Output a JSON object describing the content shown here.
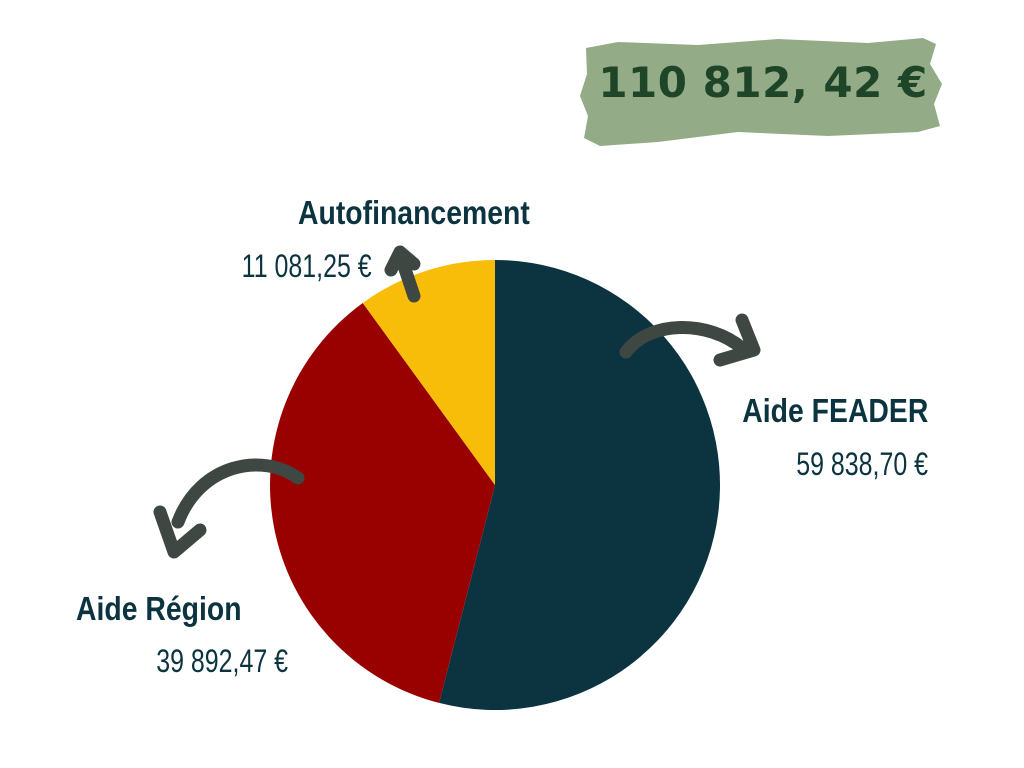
{
  "total": "110 812, 42 €",
  "colors": {
    "banner": "#93ac87",
    "total_text": "#1f4528",
    "arrow": "#3f4743",
    "label_text": "#0c3440"
  },
  "chart_data": {
    "type": "pie",
    "start_angle_deg": 0,
    "slices": [
      {
        "name": "Aide FEADER",
        "value": 59838.7,
        "value_label": "59 838,70 €",
        "color": "#0c3440"
      },
      {
        "name": "Aide Région",
        "value": 39892.47,
        "value_label": "39 892,47 €",
        "color": "#990000"
      },
      {
        "name": "Autofinancement",
        "value": 11081.25,
        "value_label": "11 081,25 €",
        "color": "#f8bd08"
      }
    ]
  }
}
